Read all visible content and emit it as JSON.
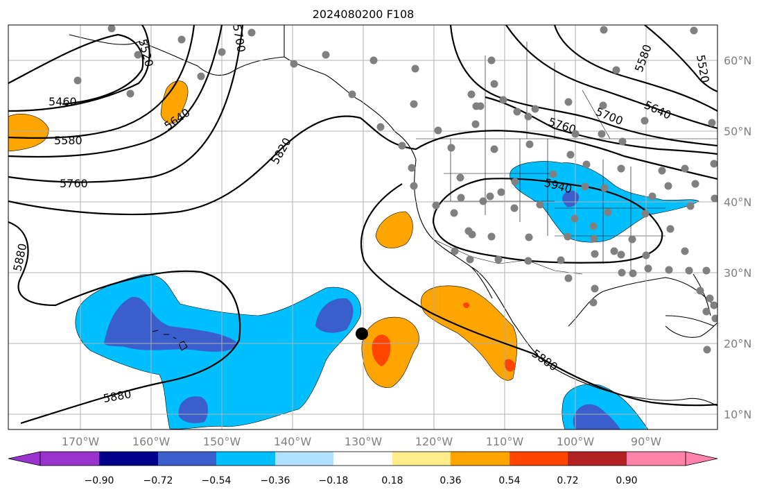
{
  "title": "2024080200 F108",
  "colors": {
    "ocean_bg": "#ffffff",
    "grid": "#b0b0b0",
    "contour": "#000000",
    "station_dot": "#808080",
    "neg_090": "#9a32cd",
    "neg_072": "#00008b",
    "neg_054": "#3a5fcd",
    "neg_036": "#00bfff",
    "neg_018": "#b0e2ff",
    "neutral": "#ffffff",
    "pos_018": "#ffec8b",
    "pos_036": "#ffa500",
    "pos_054": "#ff4500",
    "pos_072": "#b22222",
    "pos_090": "#ff82ab"
  },
  "longitude_labels": [
    "170°W",
    "160°W",
    "150°W",
    "140°W",
    "130°W",
    "120°W",
    "110°W",
    "100°W",
    "90°W"
  ],
  "latitude_labels": [
    "60°N",
    "50°N",
    "40°N",
    "30°N",
    "20°N",
    "10°N"
  ],
  "colorbar": {
    "tick_labels": [
      "−0.90",
      "−0.72",
      "−0.54",
      "−0.36",
      "−0.18",
      "0.18",
      "0.36",
      "0.54",
      "0.72",
      "0.90"
    ],
    "colors": [
      "#00008b",
      "#3a5fcd",
      "#00bfff",
      "#b0e2ff",
      "#ffffff",
      "#ffec8b",
      "#ffa500",
      "#ff4500",
      "#b22222"
    ],
    "under_color": "#9a32cd",
    "over_color": "#ff82ab"
  },
  "contour_labels": [
    "5460",
    "5580",
    "5760",
    "5520",
    "5640",
    "5700",
    "5820",
    "5880",
    "5880",
    "5880",
    "5940",
    "5760",
    "5700",
    "5640",
    "5580",
    "5520"
  ],
  "marker": "analysis-point"
}
